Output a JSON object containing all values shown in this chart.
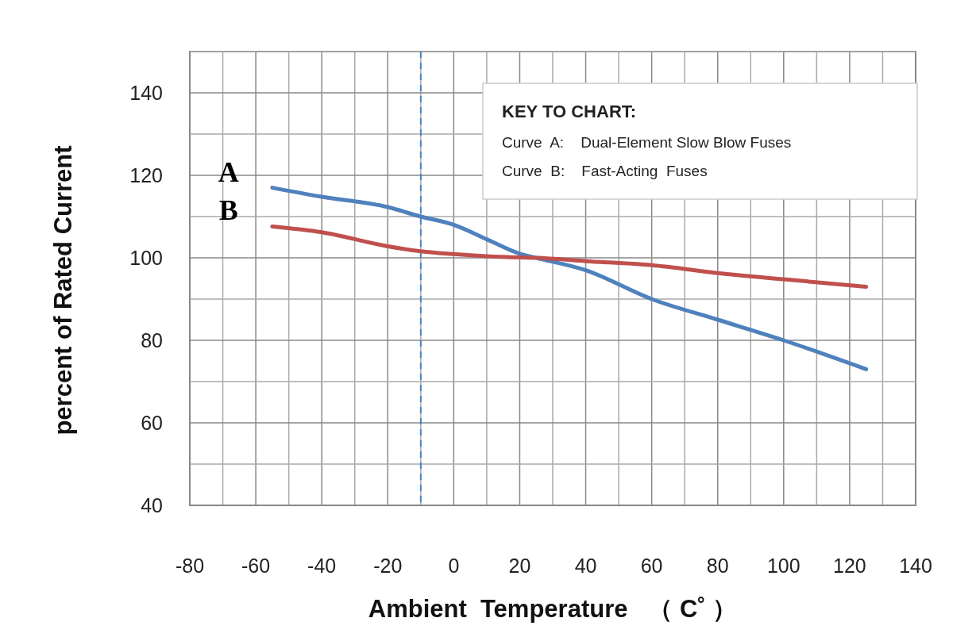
{
  "chart_data": {
    "type": "line",
    "xlabel": "Ambient  Temperature   （ C˚ ）",
    "ylabel": "percent of Rated Current",
    "xlim": [
      -80,
      140
    ],
    "ylim": [
      40,
      150
    ],
    "xticks": [
      -80,
      {
        "value": -70,
        "label": null
      },
      -60,
      {
        "value": -50,
        "label": null
      },
      -40,
      {
        "value": -30,
        "label": null
      },
      -20,
      {
        "value": -10,
        "label": null
      },
      0,
      {
        "value": 10,
        "label": null
      },
      20,
      {
        "value": 30,
        "label": null
      },
      40,
      {
        "value": 50,
        "label": null
      },
      60,
      {
        "value": 70,
        "label": null
      },
      80,
      {
        "value": 90,
        "label": null
      },
      100,
      {
        "value": 110,
        "label": null
      },
      120,
      {
        "value": 130,
        "label": null
      },
      140
    ],
    "yticks": [
      40,
      {
        "value": 50,
        "label": null
      },
      60,
      {
        "value": 70,
        "label": null
      },
      80,
      {
        "value": 90,
        "label": null
      },
      100,
      {
        "value": 110,
        "label": null
      },
      120,
      {
        "value": 130,
        "label": null
      },
      140,
      {
        "value": 150,
        "label": null
      }
    ],
    "grid": true,
    "marker": "none",
    "line_style": "solid",
    "series": [
      {
        "name": "A",
        "color": "#4f81bd",
        "x": [
          -55,
          -40,
          -20,
          -10,
          0,
          10,
          20,
          25,
          40,
          60,
          80,
          100,
          125
        ],
        "values": [
          117,
          114.8,
          112.3,
          110,
          108,
          104.5,
          101,
          100,
          97,
          90,
          85,
          80,
          73
        ]
      },
      {
        "name": "B",
        "color": "#c0504d",
        "x": [
          -55,
          -40,
          -20,
          -10,
          0,
          10,
          20,
          25,
          40,
          60,
          80,
          100,
          125
        ],
        "values": [
          107.6,
          106.2,
          102.8,
          101.6,
          100.9,
          100.4,
          100.1,
          100,
          99.2,
          98.2,
          96.3,
          94.8,
          93
        ]
      }
    ],
    "ref_lines": [
      {
        "axis": "x",
        "value": -10,
        "color": "#4f81bd",
        "line_style": "dashed"
      }
    ],
    "annotations": [
      "KEY TO CHART:",
      "Curve  A:    Dual-Element Slow Blow Fuses",
      "Curve  B:    Fast-Acting  Fuses"
    ]
  }
}
